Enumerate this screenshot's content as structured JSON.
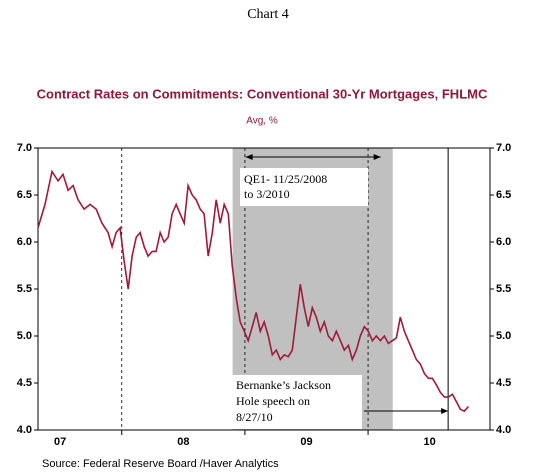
{
  "chart_data": {
    "type": "line",
    "header": "Chart 4",
    "title": "Contract Rates on Commitments: Conventional 30-Yr Mortgages, FHLMC",
    "subtitle": "Avg, %",
    "source": "Source:  Federal Reserve Board /Haver Analytics",
    "color": "#9e1b3a",
    "x": [
      2007.32,
      2007.377,
      2007.434,
      2007.483,
      2007.523,
      2007.564,
      2007.605,
      2007.645,
      2007.694,
      2007.743,
      2007.792,
      2007.84,
      2007.889,
      2007.922,
      2007.954,
      2007.987,
      2008.019,
      2008.052,
      2008.084,
      2008.117,
      2008.149,
      2008.182,
      2008.214,
      2008.247,
      2008.279,
      2008.312,
      2008.344,
      2008.377,
      2008.409,
      2008.442,
      2008.474,
      2008.507,
      2008.539,
      2008.572,
      2008.604,
      2008.637,
      2008.669,
      2008.702,
      2008.735,
      2008.767,
      2008.8,
      2008.832,
      2008.865,
      2008.897,
      2008.93,
      2008.962,
      2008.995,
      2009.027,
      2009.06,
      2009.092,
      2009.125,
      2009.157,
      2009.19,
      2009.222,
      2009.255,
      2009.287,
      2009.32,
      2009.352,
      2009.385,
      2009.417,
      2009.45,
      2009.482,
      2009.515,
      2009.547,
      2009.58,
      2009.612,
      2009.645,
      2009.677,
      2009.71,
      2009.742,
      2009.775,
      2009.807,
      2009.84,
      2009.872,
      2009.905,
      2009.937,
      2009.97,
      2010.002,
      2010.035,
      2010.067,
      2010.1,
      2010.132,
      2010.165,
      2010.197,
      2010.23,
      2010.262,
      2010.295,
      2010.327,
      2010.36,
      2010.392,
      2010.425,
      2010.457,
      2010.49,
      2010.522,
      2010.555,
      2010.587,
      2010.62,
      2010.652,
      2010.685,
      2010.717,
      2010.75,
      2010.782,
      2010.815
    ],
    "values": [
      6.15,
      6.4,
      6.75,
      6.65,
      6.72,
      6.55,
      6.6,
      6.45,
      6.35,
      6.4,
      6.35,
      6.2,
      6.1,
      5.95,
      6.1,
      6.15,
      5.8,
      5.5,
      5.85,
      6.05,
      6.1,
      5.95,
      5.85,
      5.9,
      5.9,
      6.1,
      6.0,
      6.05,
      6.3,
      6.4,
      6.3,
      6.2,
      6.6,
      6.5,
      6.45,
      6.35,
      6.3,
      5.85,
      6.1,
      6.45,
      6.2,
      6.4,
      6.3,
      5.75,
      5.4,
      5.15,
      5.05,
      4.95,
      5.1,
      5.25,
      5.05,
      5.15,
      5.0,
      4.8,
      4.85,
      4.75,
      4.8,
      4.78,
      4.85,
      5.2,
      5.55,
      5.3,
      5.1,
      5.3,
      5.2,
      5.05,
      5.15,
      5.0,
      4.95,
      5.05,
      4.95,
      4.85,
      4.9,
      4.75,
      4.85,
      5.0,
      5.1,
      5.05,
      4.95,
      5.0,
      4.95,
      5.0,
      4.92,
      4.95,
      4.98,
      5.2,
      5.05,
      4.95,
      4.85,
      4.75,
      4.7,
      4.6,
      4.55,
      4.55,
      4.48,
      4.4,
      4.35,
      4.35,
      4.38,
      4.3,
      4.22,
      4.2,
      4.25
    ],
    "xlim": [
      2007.32,
      2010.99
    ],
    "xticks": [
      {
        "value": 2007.5,
        "label": "07"
      },
      {
        "value": 2008.5,
        "label": "08"
      },
      {
        "value": 2009.5,
        "label": "09"
      },
      {
        "value": 2010.5,
        "label": "10"
      }
    ],
    "ylim": [
      4,
      7
    ],
    "yticks": [
      {
        "value": 4,
        "label": "4.0"
      },
      4.5,
      {
        "value": 5,
        "label": "5.0"
      },
      5.5,
      {
        "value": 6,
        "label": "6.0"
      },
      6.5,
      {
        "value": 7,
        "label": "7.0"
      }
    ],
    "y2lim": [
      4,
      7
    ],
    "y2ticks": [
      {
        "value": 4,
        "label": "4.0"
      },
      4.5,
      {
        "value": 5,
        "label": "5.0"
      },
      5.5,
      {
        "value": 6,
        "label": "6.0"
      },
      6.5,
      {
        "value": 7,
        "label": "7.0"
      }
    ],
    "shade": [
      2008.9,
      2010.2
    ],
    "event": 2010.65,
    "annotations": [
      [
        "QE1- 11/25/2008",
        "to 3/2010"
      ],
      [
        "Bernanke’s Jackson",
        "Hole speech on",
        "8/27/10"
      ]
    ]
  }
}
